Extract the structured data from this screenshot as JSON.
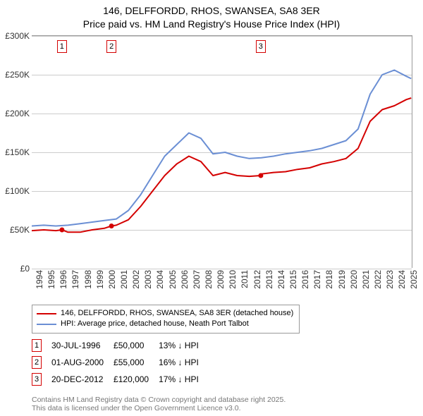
{
  "title": {
    "line1": "146, DELFFORDD, RHOS, SWANSEA, SA8 3ER",
    "line2": "Price paid vs. HM Land Registry's House Price Index (HPI)"
  },
  "chart": {
    "type": "line",
    "background_color": "#ffffff",
    "grid_color": "#cccccc",
    "axis_color": "#999999",
    "xlim": [
      1994,
      2025.5
    ],
    "ylim": [
      0,
      300000
    ],
    "ytick_step": 50000,
    "ytick_labels": [
      "£0",
      "£50K",
      "£100K",
      "£150K",
      "£200K",
      "£250K",
      "£300K"
    ],
    "xticks": [
      1994,
      1995,
      1996,
      1997,
      1998,
      1999,
      2000,
      2001,
      2002,
      2003,
      2004,
      2005,
      2006,
      2007,
      2008,
      2009,
      2010,
      2011,
      2012,
      2013,
      2014,
      2015,
      2016,
      2017,
      2018,
      2019,
      2020,
      2021,
      2022,
      2023,
      2024,
      2025
    ],
    "xtick_fontsize": 12,
    "ytick_fontsize": 12,
    "line_width": 2,
    "series": [
      {
        "name": "price_paid",
        "label": "146, DELFFORDD, RHOS, SWANSEA, SA8 3ER (detached house)",
        "color": "#d40000",
        "x": [
          1994,
          1995,
          1996,
          1996.5,
          1997,
          1998,
          1999,
          2000,
          2000.6,
          2001,
          2002,
          2003,
          2004,
          2005,
          2006,
          2007,
          2008,
          2009,
          2010,
          2011,
          2012,
          2012.95,
          2013,
          2014,
          2015,
          2016,
          2017,
          2018,
          2019,
          2020,
          2021,
          2022,
          2023,
          2024,
          2025,
          2025.4
        ],
        "y": [
          49000,
          50000,
          49000,
          50000,
          47000,
          47000,
          50000,
          52000,
          55000,
          56000,
          63000,
          80000,
          100000,
          120000,
          135000,
          145000,
          138000,
          120000,
          124000,
          120000,
          119000,
          120000,
          122000,
          124000,
          125000,
          128000,
          130000,
          135000,
          138000,
          142000,
          155000,
          190000,
          205000,
          210000,
          218000,
          220000
        ]
      },
      {
        "name": "hpi",
        "label": "HPI: Average price, detached house, Neath Port Talbot",
        "color": "#6b8fd4",
        "x": [
          1994,
          1995,
          1996,
          1997,
          1998,
          1999,
          2000,
          2001,
          2002,
          2003,
          2004,
          2005,
          2006,
          2007,
          2008,
          2009,
          2010,
          2011,
          2012,
          2013,
          2014,
          2015,
          2016,
          2017,
          2018,
          2019,
          2020,
          2021,
          2022,
          2023,
          2024,
          2025,
          2025.4
        ],
        "y": [
          55000,
          56000,
          55000,
          56000,
          58000,
          60000,
          62000,
          64000,
          75000,
          95000,
          120000,
          145000,
          160000,
          175000,
          168000,
          148000,
          150000,
          145000,
          142000,
          143000,
          145000,
          148000,
          150000,
          152000,
          155000,
          160000,
          165000,
          180000,
          225000,
          250000,
          256000,
          248000,
          245000
        ]
      }
    ],
    "sale_markers": [
      {
        "n": "1",
        "year": 1996.5,
        "color": "#d40000"
      },
      {
        "n": "2",
        "year": 2000.6,
        "color": "#d40000"
      },
      {
        "n": "3",
        "year": 2012.95,
        "color": "#d40000"
      }
    ],
    "sale_points": [
      {
        "year": 1996.5,
        "price": 50000
      },
      {
        "year": 2000.6,
        "price": 55000
      },
      {
        "year": 2012.95,
        "price": 120000
      }
    ],
    "sale_point_color": "#d40000",
    "sale_point_radius": 3.5
  },
  "legend": {
    "items": [
      {
        "color": "#d40000",
        "label": "146, DELFFORDD, RHOS, SWANSEA, SA8 3ER (detached house)"
      },
      {
        "color": "#6b8fd4",
        "label": "HPI: Average price, detached house, Neath Port Talbot"
      }
    ]
  },
  "events": [
    {
      "n": "1",
      "color": "#d40000",
      "date": "30-JUL-1996",
      "price": "£50,000",
      "delta": "13% ↓ HPI"
    },
    {
      "n": "2",
      "color": "#d40000",
      "date": "01-AUG-2000",
      "price": "£55,000",
      "delta": "16% ↓ HPI"
    },
    {
      "n": "3",
      "color": "#d40000",
      "date": "20-DEC-2012",
      "price": "£120,000",
      "delta": "17% ↓ HPI"
    }
  ],
  "footer": {
    "line1": "Contains HM Land Registry data © Crown copyright and database right 2025.",
    "line2": "This data is licensed under the Open Government Licence v3.0."
  }
}
